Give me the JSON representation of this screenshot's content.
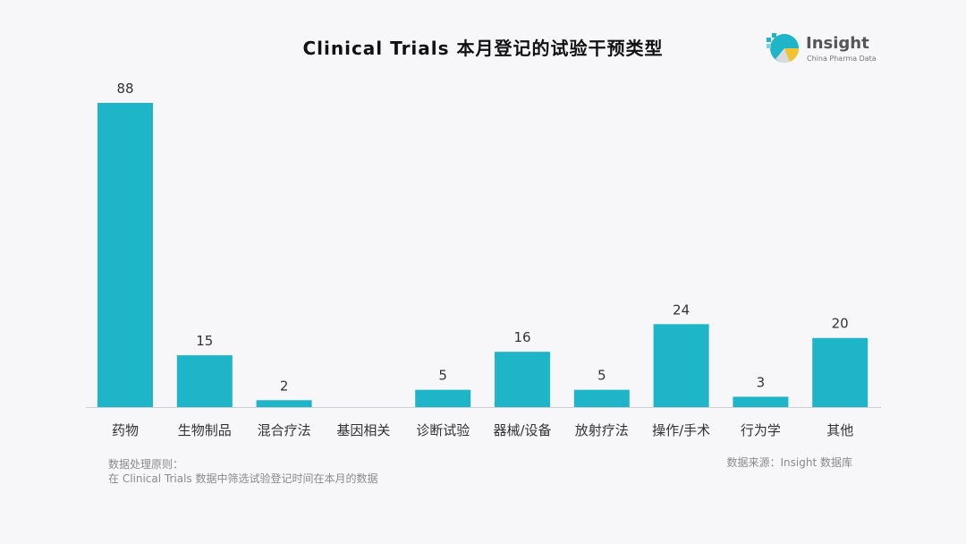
{
  "chart_data": {
    "type": "bar",
    "title": "Clinical Trials 本月登记的试验干预类型",
    "categories": [
      "药物",
      "生物制品",
      "混合疗法",
      "基因相关",
      "诊断试验",
      "器械/设备",
      "放射疗法",
      "操作/手术",
      "行为学",
      "其他"
    ],
    "values": [
      88,
      15,
      2,
      0,
      5,
      16,
      5,
      24,
      3,
      20
    ],
    "data_labels": [
      "88",
      "15",
      "2",
      "",
      "5",
      "16",
      "5",
      "24",
      "3",
      "20"
    ],
    "ylim": [
      0,
      88
    ],
    "grid": false,
    "legend": "none"
  },
  "colors": {
    "bar": "#1fb5c9",
    "axis": "#cfcfd6",
    "text": "#333333"
  },
  "logo": {
    "name": "Insight",
    "subtitle": "China Pharma Data"
  },
  "notes": {
    "line1": "数据处理原则：",
    "line2": "在 Clinical Trials 数据中筛选试验登记时间在本月的数据"
  },
  "source": "数据来源：Insight 数据库"
}
